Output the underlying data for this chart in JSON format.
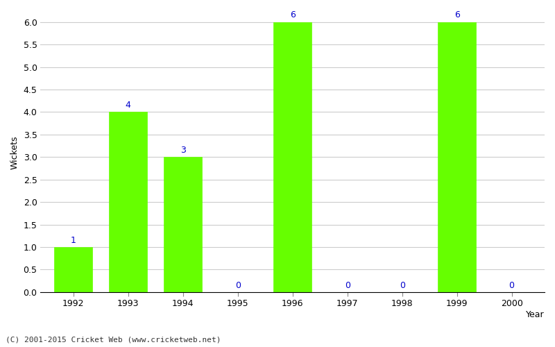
{
  "years": [
    1992,
    1993,
    1994,
    1995,
    1996,
    1997,
    1998,
    1999,
    2000
  ],
  "wickets": [
    1,
    4,
    3,
    0,
    6,
    0,
    0,
    6,
    0
  ],
  "bar_color": "#66ff00",
  "bar_edge_color": "#66ff00",
  "label_color": "#0000cc",
  "xlabel": "Year",
  "ylabel": "Wickets",
  "ylim": [
    0,
    6.2
  ],
  "yticks": [
    0.0,
    0.5,
    1.0,
    1.5,
    2.0,
    2.5,
    3.0,
    3.5,
    4.0,
    4.5,
    5.0,
    5.5,
    6.0
  ],
  "grid_color": "#cccccc",
  "background_color": "#ffffff",
  "footer": "(C) 2001-2015 Cricket Web (www.cricketweb.net)",
  "footer_color": "#333333",
  "label_fontsize": 9,
  "axis_fontsize": 9
}
